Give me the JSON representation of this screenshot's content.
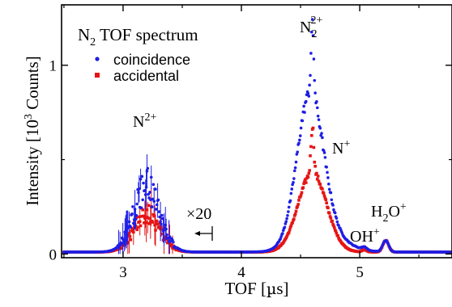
{
  "chart_data": {
    "type": "scatter",
    "title": "N2 TOF spectrum",
    "title_parts": {
      "main": "N",
      "sub": "2",
      "rest": " TOF spectrum"
    },
    "xlabel": "TOF [µs]",
    "xlabel_parts": {
      "pre": "TOF [",
      "mu": "µ",
      "post": "s]"
    },
    "ylabel": "Intensity [10^3 Counts]",
    "ylabel_parts": {
      "pre": "Intensity [10",
      "sup": "3",
      "post": " Counts]"
    },
    "xlim": [
      2.48,
      5.78
    ],
    "ylim": [
      -0.02,
      1.32
    ],
    "xticks": [
      3,
      4,
      5
    ],
    "xtick_labels": [
      "3",
      "4",
      "5"
    ],
    "yticks": [
      0,
      1
    ],
    "ytick_labels": [
      "0",
      "1"
    ],
    "grid": false,
    "legend_position": "top-left",
    "colors": {
      "coincidence": "#1e1ee6",
      "accidental": "#e61414"
    },
    "series": [
      {
        "name": "coincidence",
        "color": "#1e1ee6",
        "peaks": [
          {
            "label": "N2+ (x20)",
            "center_us": 3.2,
            "width_us": 0.11,
            "height": 0.35
          },
          {
            "label": "N2+",
            "center_us": 4.58,
            "width_us": 0.11,
            "height": 0.76
          },
          {
            "label": "N2+ sharp",
            "center_us": 4.6,
            "width_us": 0.012,
            "height": 0.35
          },
          {
            "label": "N+",
            "center_us": 4.68,
            "width_us": 0.18,
            "height": 0.1
          },
          {
            "label": "OH+",
            "center_us": 5.04,
            "width_us": 0.02,
            "height": 0.015
          },
          {
            "label": "H2O+",
            "center_us": 5.22,
            "width_us": 0.025,
            "height": 0.06
          }
        ]
      },
      {
        "name": "accidental",
        "color": "#e61414",
        "peaks": [
          {
            "label": "N2+ (x20)",
            "center_us": 3.2,
            "width_us": 0.11,
            "height": 0.2
          },
          {
            "label": "N2+",
            "center_us": 4.6,
            "width_us": 0.12,
            "height": 0.42
          },
          {
            "label": "N2+ sharp",
            "center_us": 4.6,
            "width_us": 0.012,
            "height": 0.25
          },
          {
            "label": "OH+",
            "center_us": 5.04,
            "width_us": 0.02,
            "height": 0.012
          },
          {
            "label": "H2O+",
            "center_us": 5.22,
            "width_us": 0.025,
            "height": 0.06
          }
        ]
      }
    ],
    "annotations": [
      {
        "name": "n2-plus-left",
        "base": "N",
        "sup": "2+",
        "x": 3.23,
        "y": 0.69
      },
      {
        "name": "n2-plus-right",
        "base": "N",
        "sub": "2",
        "sup": "2+",
        "x": 4.6,
        "y": 1.2
      },
      {
        "name": "n-plus",
        "base": "N",
        "sup": "+",
        "x": 4.88,
        "y": 0.54
      },
      {
        "name": "oh-plus",
        "base": "OH",
        "sup": "+",
        "x": 5.08,
        "y": 0.09
      },
      {
        "name": "h2o-plus",
        "base": "H",
        "sub": "2",
        "base2": "O",
        "sup": "+",
        "x": 5.28,
        "y": 0.2
      },
      {
        "name": "scale-x20",
        "base": "×20",
        "x": 3.7,
        "y": 0.18
      }
    ]
  }
}
